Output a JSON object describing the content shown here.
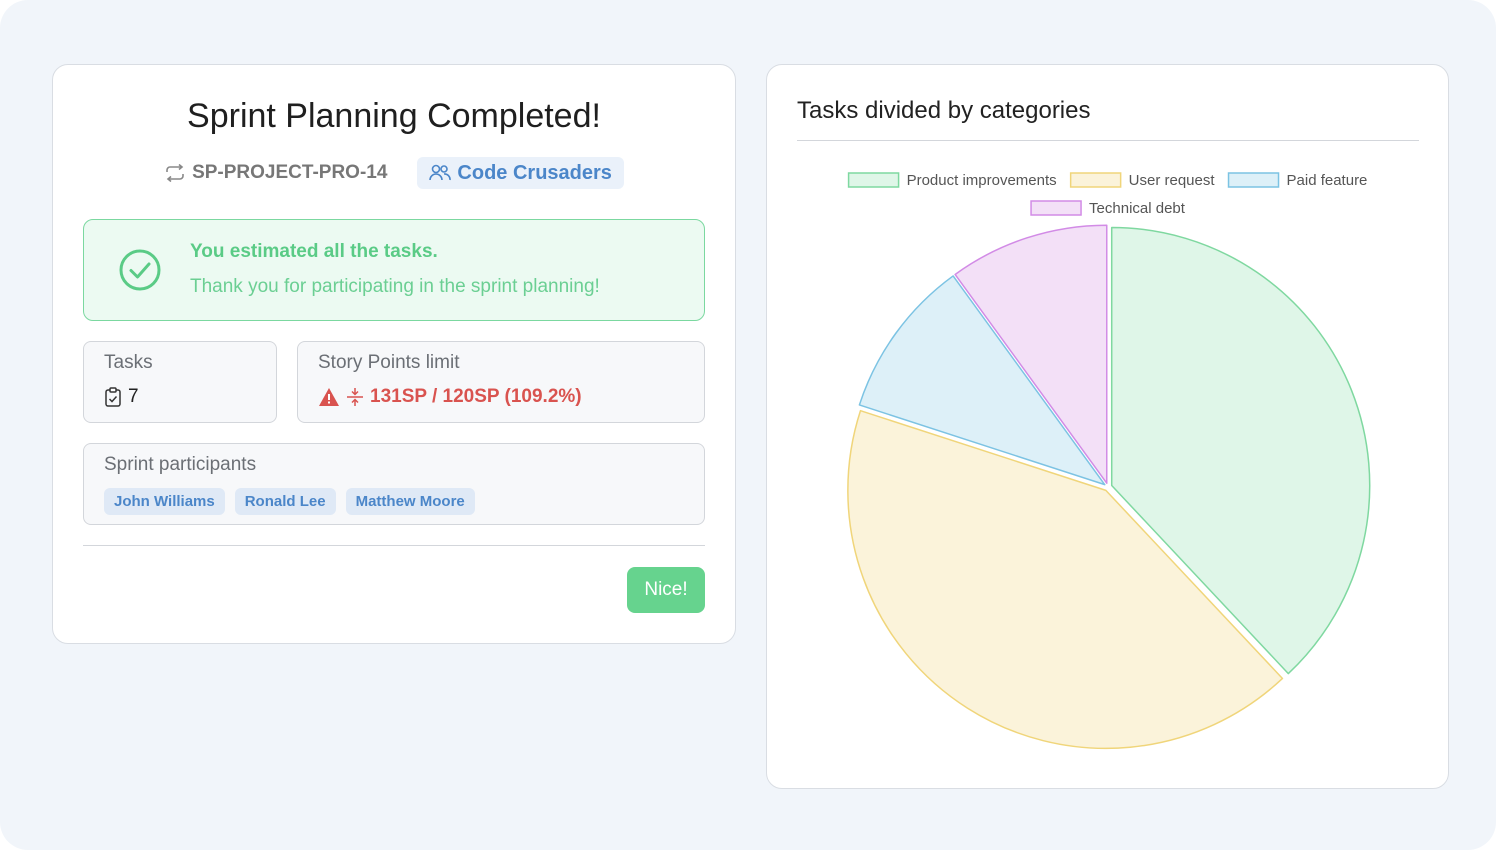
{
  "summary": {
    "title": "Sprint Planning Completed!",
    "sprint_code": "SP-PROJECT-PRO-14",
    "team_name": "Code Crusaders",
    "success_title": "You estimated all the tasks.",
    "success_text": "Thank you for participating in the sprint planning!",
    "tasks_label": "Tasks",
    "tasks_count": "7",
    "sp_label": "Story Points limit",
    "sp_value": "131SP / 120SP (109.2%)",
    "participants_label": "Sprint participants",
    "participants": [
      "John Williams",
      "Ronald Lee",
      "Matthew Moore"
    ],
    "nice_label": "Nice!"
  },
  "colors": {
    "success": "#5acb86",
    "danger": "#d9534f",
    "accent": "#4b86c9"
  },
  "chart_data": {
    "type": "pie",
    "title": "Tasks divided by categories",
    "legend_position": "top",
    "categories": [
      "Product improvements",
      "User request",
      "Paid feature",
      "Technical debt"
    ],
    "values": [
      38,
      42,
      10,
      10
    ],
    "unit": "percent",
    "fills": [
      "#dff6e8",
      "#fbf3da",
      "#ddf0f8",
      "#f3e0f7"
    ],
    "strokes": [
      "#7fd8a0",
      "#f0d57a",
      "#7cc3e3",
      "#d28be6"
    ]
  }
}
